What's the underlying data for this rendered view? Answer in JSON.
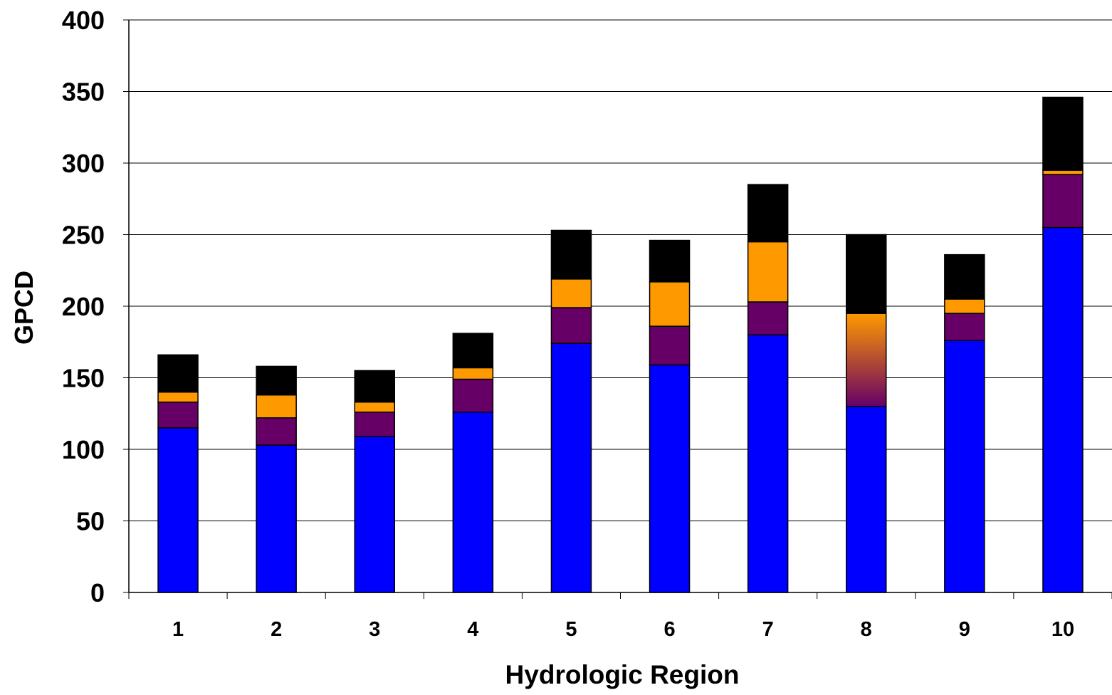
{
  "chart_data": {
    "type": "bar",
    "stacked": true,
    "title": "",
    "xlabel": "Hydrologic Region",
    "ylabel": "GPCD",
    "ylim": [
      0,
      400
    ],
    "yticks": [
      0,
      50,
      100,
      150,
      200,
      250,
      300,
      350,
      400
    ],
    "grid": true,
    "legend": "none",
    "categories": [
      "1",
      "2",
      "3",
      "4",
      "5",
      "6",
      "7",
      "8",
      "9",
      "10"
    ],
    "series": [
      {
        "color": "#0000ff",
        "values": [
          115,
          103,
          109,
          126,
          174,
          159,
          180,
          130,
          176,
          255
        ]
      },
      {
        "color": "#660066",
        "values": [
          18,
          19,
          17,
          23,
          25,
          27,
          23,
          0,
          19,
          37
        ]
      },
      {
        "color": "#ff9900",
        "values": [
          7,
          16,
          7,
          8,
          20,
          31,
          42,
          65,
          10,
          3
        ]
      },
      {
        "color": "#000000",
        "values": [
          26,
          20,
          22,
          24,
          34,
          29,
          40,
          55,
          31,
          51
        ]
      }
    ],
    "gradient_bar": {
      "category": "8",
      "segment_index": 2,
      "colors_bottom_to_top": [
        "#660066",
        "#ff9900"
      ]
    }
  }
}
